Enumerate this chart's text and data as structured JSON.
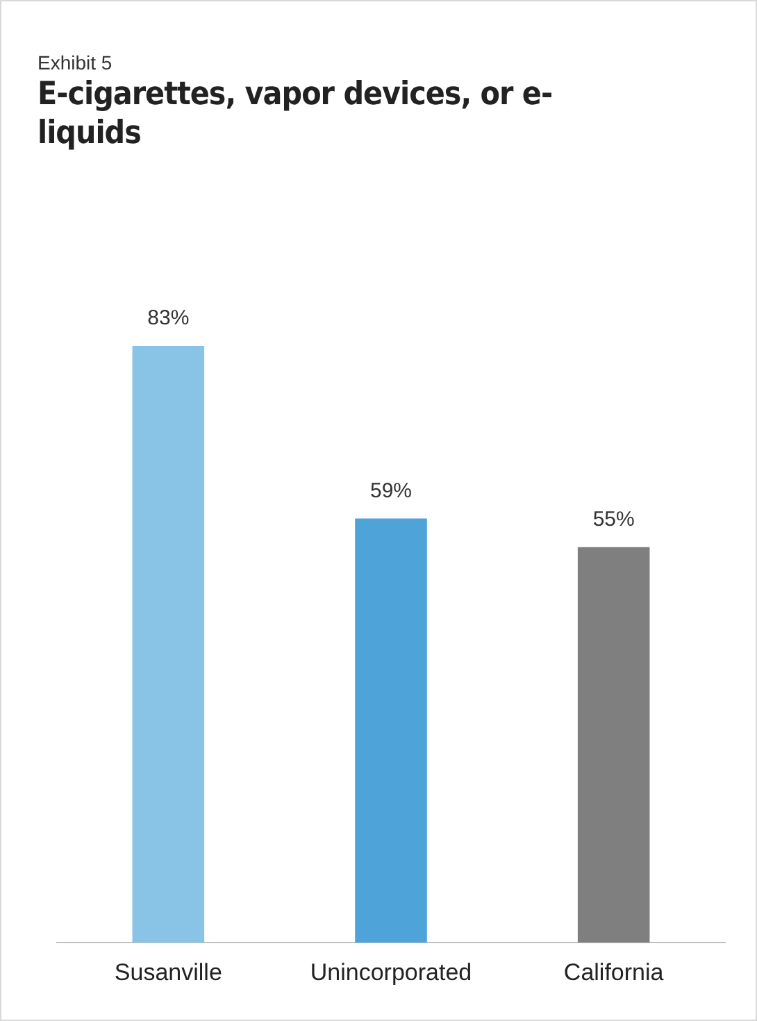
{
  "chart_data": {
    "type": "bar",
    "subtitle": "Exhibit 5",
    "title": "E-cigarettes, vapor devices, or e-liquids",
    "categories": [
      "Susanville",
      "Unincorporated",
      "California"
    ],
    "values": [
      83,
      59,
      55
    ],
    "colors": [
      "#89c3e6",
      "#4ea3d9",
      "#7f7f7f"
    ],
    "value_labels": [
      "83%",
      "59%",
      "55%"
    ],
    "grid": false,
    "legend": false
  }
}
